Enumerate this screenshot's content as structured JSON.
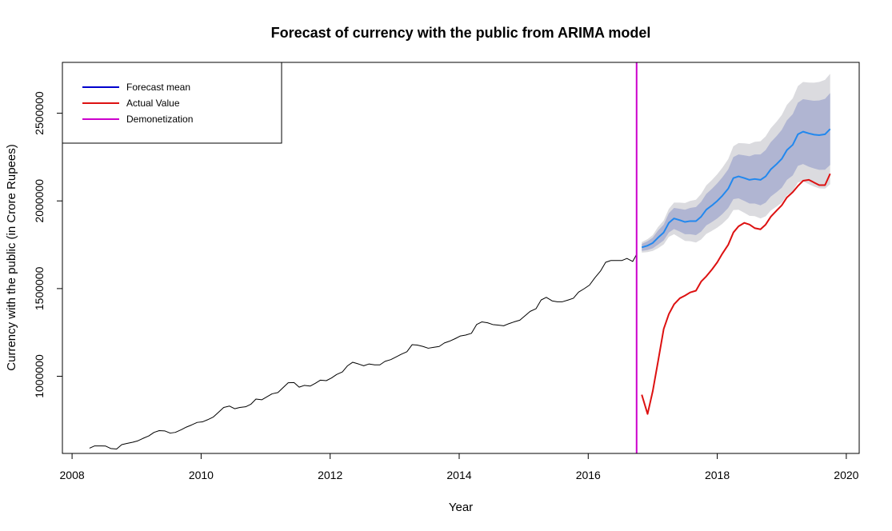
{
  "chart_data": {
    "type": "line",
    "title": "Forecast of currency with the public from ARIMA model",
    "xlabel": "Year",
    "ylabel": "Currency with the public (in Crore Rupees)",
    "xlim": [
      2007.85,
      2020.2
    ],
    "ylim": [
      560000,
      2790000
    ],
    "x_ticks": [
      2008,
      2010,
      2012,
      2014,
      2016,
      2018,
      2020
    ],
    "y_ticks": [
      1000000,
      1500000,
      2000000,
      2500000
    ],
    "x_tick_labels": [
      "2008",
      "2010",
      "2012",
      "2014",
      "2016",
      "2018",
      "2020"
    ],
    "y_tick_labels": [
      "1000000",
      "1500000",
      "2000000",
      "2500000"
    ],
    "grid": false,
    "legend_position": "top-left",
    "legend": [
      {
        "label": "Forecast mean",
        "color": "#0000CD"
      },
      {
        "label": "Actual Value",
        "color": "#DD1111"
      },
      {
        "label": "Demonetization",
        "color": "#CC00CC"
      }
    ],
    "demonetization_x": 2016.75,
    "series": [
      {
        "role": "historical",
        "color": "#000000",
        "x": [
          2008.27,
          2008.35,
          2008.44,
          2008.52,
          2008.6,
          2008.69,
          2008.77,
          2008.85,
          2008.94,
          2009.02,
          2009.1,
          2009.19,
          2009.27,
          2009.35,
          2009.44,
          2009.52,
          2009.6,
          2009.69,
          2009.77,
          2009.85,
          2009.94,
          2010.02,
          2010.1,
          2010.19,
          2010.27,
          2010.35,
          2010.44,
          2010.52,
          2010.6,
          2010.69,
          2010.77,
          2010.85,
          2010.94,
          2011.02,
          2011.1,
          2011.19,
          2011.27,
          2011.35,
          2011.44,
          2011.52,
          2011.6,
          2011.69,
          2011.77,
          2011.85,
          2011.94,
          2012.02,
          2012.1,
          2012.19,
          2012.27,
          2012.35,
          2012.44,
          2012.52,
          2012.6,
          2012.69,
          2012.77,
          2012.85,
          2012.94,
          2013.02,
          2013.1,
          2013.19,
          2013.27,
          2013.35,
          2013.44,
          2013.52,
          2013.6,
          2013.69,
          2013.77,
          2013.85,
          2013.94,
          2014.02,
          2014.1,
          2014.19,
          2014.27,
          2014.35,
          2014.44,
          2014.52,
          2014.6,
          2014.69,
          2014.77,
          2014.85,
          2014.94,
          2015.02,
          2015.1,
          2015.19,
          2015.27,
          2015.35,
          2015.44,
          2015.52,
          2015.6,
          2015.69,
          2015.77,
          2015.85,
          2015.94,
          2016.02,
          2016.1,
          2016.19,
          2016.27,
          2016.35,
          2016.44,
          2016.52,
          2016.6,
          2016.69,
          2016.75
        ],
        "values": [
          590000,
          603000,
          603000,
          602000,
          588000,
          585000,
          610000,
          617000,
          624000,
          632000,
          646000,
          660000,
          680000,
          690000,
          688000,
          676000,
          680000,
          695000,
          710000,
          722000,
          737000,
          740000,
          752000,
          768000,
          795000,
          822000,
          830000,
          815000,
          822000,
          826000,
          840000,
          870000,
          866000,
          883000,
          900000,
          907000,
          935000,
          963000,
          964000,
          938000,
          948000,
          944000,
          960000,
          978000,
          975000,
          990000,
          1010000,
          1025000,
          1060000,
          1080000,
          1070000,
          1060000,
          1070000,
          1065000,
          1065000,
          1085000,
          1095000,
          1110000,
          1125000,
          1140000,
          1180000,
          1178000,
          1170000,
          1160000,
          1165000,
          1170000,
          1190000,
          1200000,
          1215000,
          1230000,
          1235000,
          1245000,
          1295000,
          1310000,
          1305000,
          1295000,
          1292000,
          1288000,
          1300000,
          1310000,
          1320000,
          1345000,
          1370000,
          1385000,
          1435000,
          1450000,
          1430000,
          1425000,
          1425000,
          1435000,
          1445000,
          1480000,
          1500000,
          1520000,
          1560000,
          1600000,
          1650000,
          1660000,
          1660000,
          1660000,
          1672000,
          1655000,
          1695000
        ]
      },
      {
        "name": "Forecast mean",
        "role": "forecast",
        "color": "#2288EE",
        "x": [
          2016.83,
          2016.92,
          2017.0,
          2017.08,
          2017.17,
          2017.25,
          2017.33,
          2017.42,
          2017.5,
          2017.58,
          2017.67,
          2017.75,
          2017.83,
          2017.92,
          2018.0,
          2018.08,
          2018.17,
          2018.25,
          2018.33,
          2018.42,
          2018.5,
          2018.58,
          2018.67,
          2018.75,
          2018.83,
          2018.92,
          2019.0,
          2019.08,
          2019.17,
          2019.25,
          2019.33,
          2019.42,
          2019.5,
          2019.58,
          2019.67,
          2019.75
        ],
        "values": [
          1735000,
          1745000,
          1760000,
          1790000,
          1820000,
          1875000,
          1900000,
          1890000,
          1880000,
          1885000,
          1885000,
          1910000,
          1950000,
          1975000,
          2000000,
          2030000,
          2070000,
          2130000,
          2140000,
          2130000,
          2120000,
          2125000,
          2120000,
          2140000,
          2180000,
          2210000,
          2240000,
          2290000,
          2320000,
          2380000,
          2395000,
          2385000,
          2378000,
          2375000,
          2380000,
          2410000
        ],
        "lower80": [
          1715000,
          1720000,
          1730000,
          1750000,
          1775000,
          1820000,
          1840000,
          1825000,
          1810000,
          1810000,
          1805000,
          1825000,
          1860000,
          1880000,
          1900000,
          1925000,
          1960000,
          2010000,
          2015000,
          2000000,
          1985000,
          1985000,
          1975000,
          1990000,
          2025000,
          2050000,
          2075000,
          2120000,
          2145000,
          2200000,
          2210000,
          2195000,
          2185000,
          2177000,
          2178000,
          2205000
        ],
        "upper80": [
          1755000,
          1770000,
          1790000,
          1830000,
          1865000,
          1930000,
          1960000,
          1955000,
          1950000,
          1960000,
          1965000,
          1995000,
          2040000,
          2070000,
          2100000,
          2135000,
          2180000,
          2250000,
          2265000,
          2260000,
          2255000,
          2265000,
          2265000,
          2290000,
          2335000,
          2370000,
          2405000,
          2460000,
          2495000,
          2560000,
          2580000,
          2575000,
          2571000,
          2573000,
          2582000,
          2615000
        ],
        "lower95": [
          1705000,
          1708000,
          1715000,
          1730000,
          1752000,
          1795000,
          1810000,
          1790000,
          1772000,
          1770000,
          1763000,
          1780000,
          1812000,
          1830000,
          1848000,
          1870000,
          1902000,
          1948000,
          1950000,
          1932000,
          1915000,
          1913000,
          1900000,
          1912000,
          1945000,
          1968000,
          1990000,
          2032000,
          2055000,
          2105000,
          2112000,
          2095000,
          2082000,
          2072000,
          2070000,
          2095000
        ],
        "upper95": [
          1765000,
          1782000,
          1805000,
          1850000,
          1888000,
          1955000,
          1990000,
          1990000,
          1988000,
          2000000,
          2007000,
          2040000,
          2088000,
          2120000,
          2152000,
          2190000,
          2238000,
          2312000,
          2330000,
          2328000,
          2325000,
          2337000,
          2340000,
          2368000,
          2415000,
          2452000,
          2490000,
          2548000,
          2585000,
          2655000,
          2678000,
          2675000,
          2674000,
          2678000,
          2690000,
          2725000
        ]
      },
      {
        "name": "Actual Value",
        "role": "actual",
        "color": "#DD1111",
        "x": [
          2016.83,
          2016.92,
          2017.0,
          2017.08,
          2017.17,
          2017.25,
          2017.33,
          2017.42,
          2017.5,
          2017.58,
          2017.67,
          2017.75,
          2017.83,
          2017.92,
          2018.0,
          2018.08,
          2018.17,
          2018.25,
          2018.33,
          2018.42,
          2018.5,
          2018.58,
          2018.67,
          2018.75,
          2018.83,
          2018.92,
          2019.0,
          2019.08,
          2019.17,
          2019.25,
          2019.33,
          2019.42,
          2019.5,
          2019.58,
          2019.67,
          2019.75
        ],
        "values": [
          895000,
          785000,
          915000,
          1080000,
          1270000,
          1355000,
          1410000,
          1445000,
          1460000,
          1478000,
          1488000,
          1540000,
          1570000,
          1610000,
          1650000,
          1700000,
          1750000,
          1820000,
          1855000,
          1875000,
          1865000,
          1845000,
          1838000,
          1865000,
          1910000,
          1945000,
          1975000,
          2020000,
          2050000,
          2085000,
          2115000,
          2120000,
          2105000,
          2090000,
          2090000,
          2155000
        ]
      }
    ]
  }
}
